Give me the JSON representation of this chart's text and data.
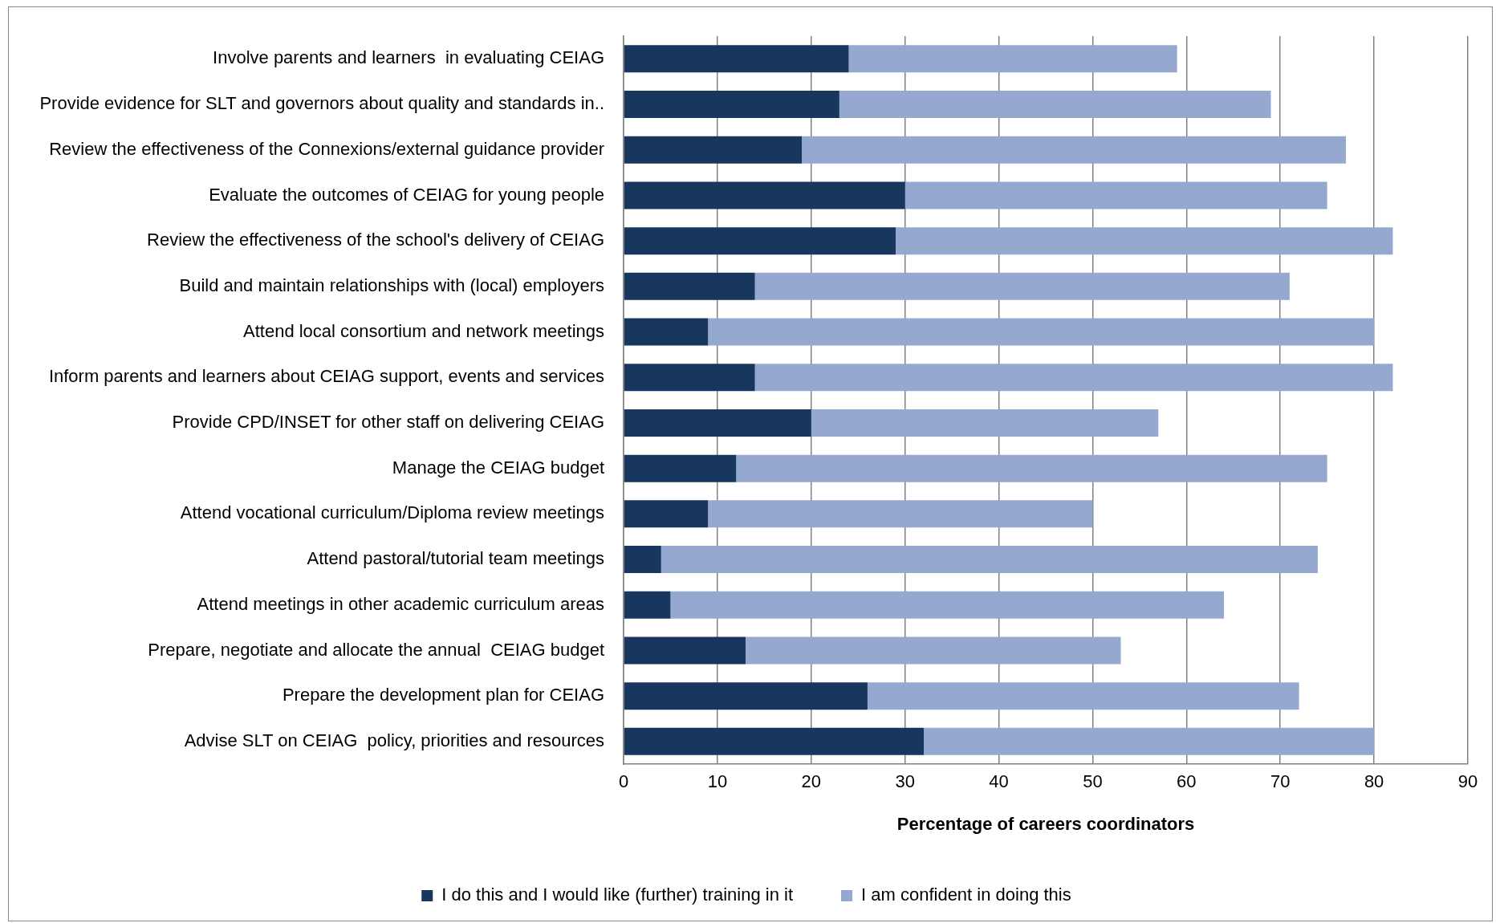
{
  "chart_data": {
    "type": "bar",
    "orientation": "horizontal",
    "stacked": true,
    "xlabel": "Percentage of careers coordinators",
    "categories": [
      "Involve parents and learners  in evaluating CEIAG",
      "Provide evidence for SLT and governors about quality and standards in..",
      "Review the effectiveness of the Connexions/external guidance provider",
      "Evaluate the outcomes of CEIAG for young people",
      "Review the effectiveness of the school's delivery of CEIAG",
      "Build and maintain relationships with (local) employers",
      "Attend local consortium and network meetings",
      "Inform parents and learners about CEIAG support, events and services",
      "Provide CPD/INSET for other staff on delivering CEIAG",
      "Manage the CEIAG budget",
      "Attend vocational curriculum/Diploma review meetings",
      "Attend pastoral/tutorial team meetings",
      "Attend meetings in other academic curriculum areas",
      "Prepare, negotiate and allocate the annual  CEIAG budget",
      "Prepare the development plan for CEIAG",
      "Advise SLT on CEIAG  policy, priorities and resources"
    ],
    "series": [
      {
        "name": "I do this and I would like (further) training in it",
        "color": "#17375e",
        "values": [
          24,
          23,
          19,
          30,
          29,
          14,
          9,
          14,
          20,
          12,
          9,
          4,
          5,
          13,
          26,
          32
        ]
      },
      {
        "name": "I am confident in doing this",
        "color": "#95a9d0",
        "values": [
          35,
          46,
          58,
          45,
          53,
          57,
          71,
          68,
          37,
          63,
          41,
          70,
          59,
          40,
          46,
          48
        ]
      }
    ],
    "xlim": [
      0,
      90
    ],
    "xticks": [
      0,
      10,
      20,
      30,
      40,
      50,
      60,
      70,
      80,
      90
    ],
    "grid": "x",
    "legend": "bottom"
  }
}
